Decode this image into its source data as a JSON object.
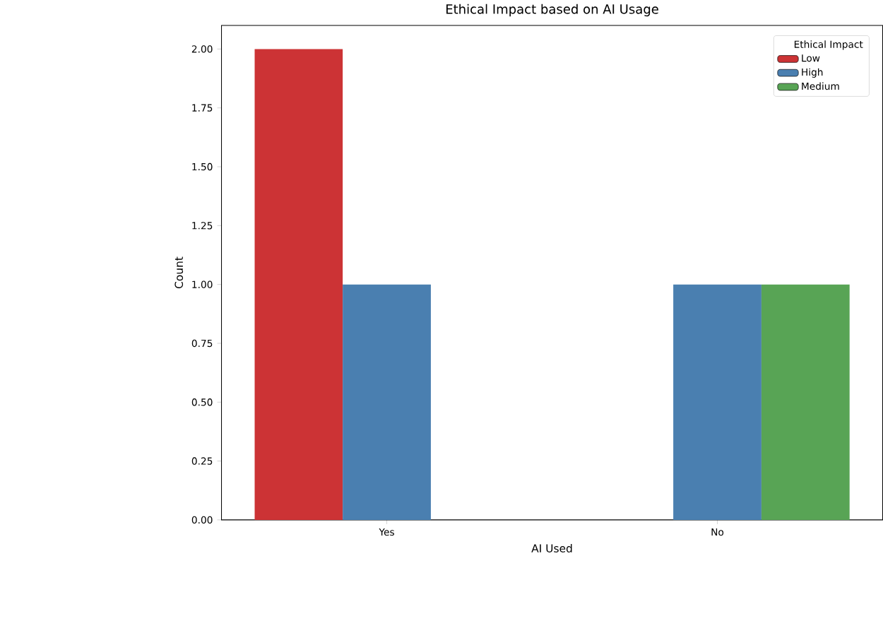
{
  "chart_data": {
    "type": "bar",
    "title": "Ethical Impact based on AI Usage",
    "xlabel": "AI Used",
    "ylabel": "Count",
    "legend_title": "Ethical Impact",
    "categories": [
      "Yes",
      "No"
    ],
    "series": [
      {
        "name": "Low",
        "color": "#cc3335",
        "values": [
          2,
          null
        ]
      },
      {
        "name": "High",
        "color": "#4a7fb0",
        "values": [
          1,
          1
        ]
      },
      {
        "name": "Medium",
        "color": "#58a455",
        "values": [
          null,
          1
        ]
      }
    ],
    "ylim": [
      0,
      2.1
    ],
    "yticks": [
      {
        "value": 0,
        "label": "0.00"
      },
      {
        "value": 0.25,
        "label": "0.25"
      },
      {
        "value": 0.5,
        "label": "0.50"
      },
      {
        "value": 0.75,
        "label": "0.75"
      },
      {
        "value": 1,
        "label": "1.00"
      },
      {
        "value": 1.25,
        "label": "1.25"
      },
      {
        "value": 1.5,
        "label": "1.50"
      },
      {
        "value": 1.75,
        "label": "1.75"
      },
      {
        "value": 2,
        "label": "2.00"
      }
    ],
    "grid": false,
    "legend": "top right"
  }
}
